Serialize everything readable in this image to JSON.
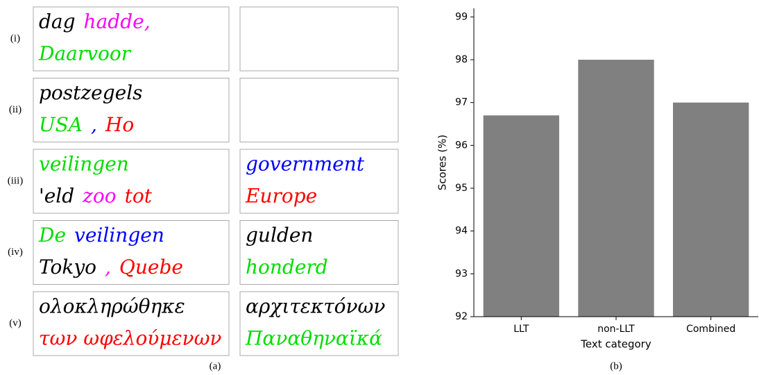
{
  "figure": {
    "panel_caption": "(a)",
    "rows": [
      {
        "label": "(i)",
        "left": [
          [
            {
              "text": "dag",
              "color": "#000000"
            },
            {
              "text": "hadde,",
              "color": "#ff00ff"
            }
          ],
          [
            {
              "text": "Daarvoor",
              "color": "#00dd00"
            }
          ]
        ],
        "right": []
      },
      {
        "label": "(ii)",
        "left": [
          [
            {
              "text": "postzegels",
              "color": "#000000"
            }
          ],
          [
            {
              "text": "USA",
              "color": "#00dd00"
            },
            {
              "text": ",",
              "color": "#0000ff"
            },
            {
              "text": "Ho",
              "color": "#ff0000"
            }
          ]
        ],
        "right": []
      },
      {
        "label": "(iii)",
        "left": [
          [
            {
              "text": "veilingen",
              "color": "#00dd00"
            }
          ],
          [
            {
              "text": "'eld",
              "color": "#000000"
            },
            {
              "text": "zoo",
              "color": "#ff00ff"
            },
            {
              "text": "tot",
              "color": "#ff0000"
            }
          ]
        ],
        "right": [
          [
            {
              "text": "government",
              "color": "#0000ff"
            }
          ],
          [
            {
              "text": "Europe",
              "color": "#ff0000"
            }
          ]
        ]
      },
      {
        "label": "(iv)",
        "left": [
          [
            {
              "text": "De",
              "color": "#00dd00"
            },
            {
              "text": "veilingen",
              "color": "#0000ff"
            }
          ],
          [
            {
              "text": "Tokyo",
              "color": "#000000"
            },
            {
              "text": ",",
              "color": "#ff00ff"
            },
            {
              "text": "Quebe",
              "color": "#ff0000"
            }
          ]
        ],
        "right": [
          [
            {
              "text": "gulden",
              "color": "#000000"
            }
          ],
          [
            {
              "text": "honderd",
              "color": "#00dd00"
            }
          ]
        ]
      },
      {
        "label": "(v)",
        "left": [
          [
            {
              "text": "ολοκληρώθηκε",
              "color": "#000000"
            }
          ],
          [
            {
              "text": "των ωφελούμενων",
              "color": "#ff0000"
            }
          ]
        ],
        "right": [
          [
            {
              "text": "αρχιτεκτόνων",
              "color": "#000000"
            }
          ],
          [
            {
              "text": "Παναθηναϊκά",
              "color": "#00dd00"
            }
          ]
        ]
      }
    ]
  },
  "chart_data": {
    "type": "bar",
    "caption": "(b)",
    "x_label": "Text category",
    "y_label": "Scores (%)",
    "categories": [
      "LLT",
      "non-LLT",
      "Combined"
    ],
    "values": [
      96.7,
      98.0,
      97.0
    ],
    "color": "#808080",
    "ylim": [
      92,
      99.2
    ],
    "yticks": [
      92,
      93,
      94,
      95,
      96,
      97,
      98,
      99
    ]
  }
}
